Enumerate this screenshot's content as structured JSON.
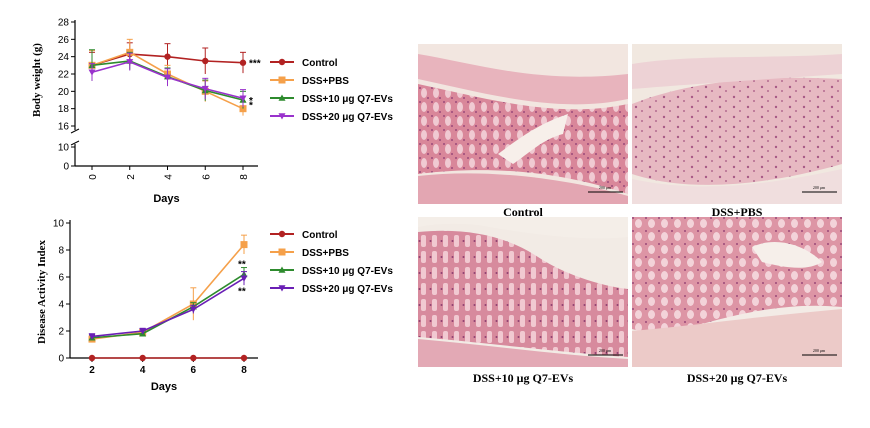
{
  "chart_data": [
    {
      "type": "line",
      "ylabel": "Body weight (g)",
      "xlabel": "Days",
      "x": [
        0,
        2,
        4,
        6,
        8
      ],
      "ylim": [
        0,
        28
      ],
      "yticks": [
        0,
        10,
        16,
        18,
        20,
        22,
        24,
        26,
        28
      ],
      "axis_break": [
        10,
        16
      ],
      "legend_position": "right",
      "series": [
        {
          "name": "Control",
          "values": [
            23.0,
            24.3,
            24.0,
            23.5,
            23.3
          ],
          "errors": [
            1.5,
            1.3,
            1.5,
            1.5,
            1.2
          ],
          "color": "#b22222",
          "marker": "circle",
          "annotation": "***"
        },
        {
          "name": "DSS+PBS",
          "values": [
            23.0,
            24.5,
            22.0,
            20.0,
            18.0
          ],
          "errors": [
            1.7,
            1.5,
            1.0,
            1.2,
            0.8
          ],
          "color": "#f5a04a",
          "marker": "square",
          "annotation": ""
        },
        {
          "name": "DSS+10 μg Q7-EVs",
          "values": [
            23.0,
            23.5,
            21.7,
            20.1,
            19.0
          ],
          "errors": [
            1.8,
            1.0,
            1.0,
            1.2,
            1.0
          ],
          "color": "#2e8b2e",
          "marker": "triangle-up",
          "annotation": "*"
        },
        {
          "name": "DSS+20 μg Q7-EVs",
          "values": [
            22.2,
            23.4,
            21.6,
            20.3,
            19.2
          ],
          "errors": [
            1.0,
            1.0,
            1.0,
            1.2,
            1.0
          ],
          "color": "#9932cc",
          "marker": "triangle-down",
          "annotation": "*"
        }
      ]
    },
    {
      "type": "line",
      "ylabel": "Disease Activity Index",
      "xlabel": "Days",
      "x": [
        2,
        4,
        6,
        8
      ],
      "ylim": [
        0,
        10
      ],
      "yticks": [
        0,
        2,
        4,
        6,
        8,
        10
      ],
      "legend_position": "right",
      "series": [
        {
          "name": "Control",
          "values": [
            0,
            0,
            0,
            0
          ],
          "errors": [
            0,
            0,
            0,
            0
          ],
          "color": "#b22222",
          "marker": "circle",
          "annotation": ""
        },
        {
          "name": "DSS+PBS",
          "values": [
            1.4,
            1.9,
            4.0,
            8.4
          ],
          "errors": [
            0.2,
            0.2,
            1.2,
            0.7
          ],
          "color": "#f5a04a",
          "marker": "square",
          "annotation": ""
        },
        {
          "name": "DSS+10 μg Q7-EVs",
          "values": [
            1.5,
            1.8,
            3.8,
            6.2
          ],
          "errors": [
            0.2,
            0.2,
            0.3,
            0.5
          ],
          "color": "#2e8b2e",
          "marker": "triangle-up",
          "annotation": "**"
        },
        {
          "name": "DSS+20 μg Q7-EVs",
          "values": [
            1.6,
            2.0,
            3.6,
            5.9
          ],
          "errors": [
            0.2,
            0.2,
            0.3,
            0.5
          ],
          "color": "#6a1fb5",
          "marker": "triangle-down",
          "annotation": "**"
        }
      ]
    }
  ],
  "histology": {
    "panels": [
      {
        "caption": "Control",
        "scale_bar": "200 μm"
      },
      {
        "caption": "DSS+PBS",
        "scale_bar": "200 μm"
      },
      {
        "caption": "DSS+10 μg Q7-EVs",
        "scale_bar": "200 μm"
      },
      {
        "caption": "DSS+20 μg Q7-EVs",
        "scale_bar": "200 μm"
      }
    ]
  }
}
